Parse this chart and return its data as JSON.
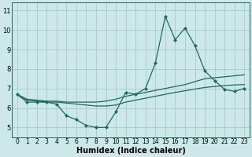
{
  "xlabel": "Humidex (Indice chaleur)",
  "background_color": "#cce8e8",
  "line_color": "#1a6b5a",
  "grid_color": "#aacece",
  "x_values": [
    0,
    1,
    2,
    3,
    4,
    5,
    6,
    7,
    8,
    9,
    10,
    11,
    12,
    13,
    14,
    15,
    16,
    17,
    18,
    19,
    20,
    21,
    22,
    23
  ],
  "main_line": [
    6.7,
    6.3,
    6.3,
    6.3,
    6.2,
    5.6,
    5.4,
    5.1,
    5.0,
    5.0,
    5.8,
    6.8,
    6.7,
    7.0,
    8.3,
    10.7,
    9.5,
    10.1,
    9.2,
    7.9,
    7.4,
    6.95,
    6.85,
    7.0
  ],
  "trend_upper": [
    6.7,
    6.45,
    6.4,
    6.35,
    6.35,
    6.3,
    6.3,
    6.3,
    6.3,
    6.35,
    6.45,
    6.6,
    6.7,
    6.8,
    6.9,
    7.0,
    7.1,
    7.2,
    7.35,
    7.5,
    7.55,
    7.6,
    7.65,
    7.7
  ],
  "trend_lower": [
    6.7,
    6.4,
    6.35,
    6.3,
    6.3,
    6.25,
    6.2,
    6.15,
    6.1,
    6.1,
    6.15,
    6.3,
    6.4,
    6.5,
    6.6,
    6.7,
    6.8,
    6.88,
    6.97,
    7.05,
    7.1,
    7.15,
    7.18,
    7.2
  ],
  "ylim": [
    4.5,
    11.4
  ],
  "yticks": [
    5,
    6,
    7,
    8,
    9,
    10,
    11
  ],
  "xticks": [
    0,
    1,
    2,
    3,
    4,
    5,
    6,
    7,
    8,
    9,
    10,
    11,
    12,
    13,
    14,
    15,
    16,
    17,
    18,
    19,
    20,
    21,
    22,
    23
  ]
}
